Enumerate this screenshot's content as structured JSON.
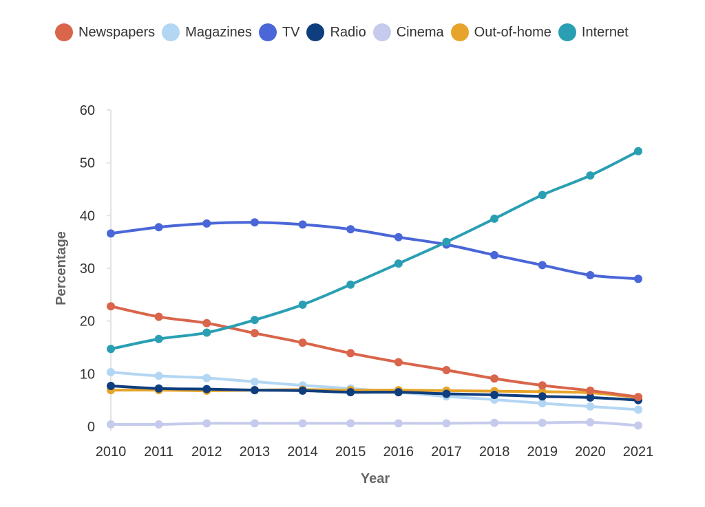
{
  "chart_data": {
    "type": "line",
    "title": "",
    "xlabel": "Year",
    "ylabel": "Percentage",
    "x": [
      2010,
      2011,
      2012,
      2013,
      2014,
      2015,
      2016,
      2017,
      2018,
      2019,
      2020,
      2021
    ],
    "ylim": [
      0,
      60
    ],
    "yticks": [
      0,
      10,
      20,
      30,
      40,
      50,
      60
    ],
    "grid": false,
    "legend_position": "top",
    "series": [
      {
        "name": "Newspapers",
        "color": "#d9654b",
        "values": [
          22.8,
          20.8,
          19.6,
          17.7,
          15.9,
          13.9,
          12.2,
          10.7,
          9.1,
          7.8,
          6.8,
          5.6
        ]
      },
      {
        "name": "Magazines",
        "color": "#b3d6f3",
        "values": [
          10.3,
          9.6,
          9.2,
          8.5,
          7.8,
          7.2,
          6.5,
          5.7,
          5.1,
          4.4,
          3.8,
          3.2
        ]
      },
      {
        "name": "TV",
        "color": "#4a66d8",
        "values": [
          36.6,
          37.8,
          38.5,
          38.7,
          38.3,
          37.4,
          35.9,
          34.5,
          32.5,
          30.6,
          28.7,
          28.0
        ]
      },
      {
        "name": "Radio",
        "color": "#0f3e7e",
        "values": [
          7.7,
          7.2,
          7.1,
          6.9,
          6.8,
          6.5,
          6.5,
          6.2,
          6.0,
          5.7,
          5.5,
          5.0
        ]
      },
      {
        "name": "Cinema",
        "color": "#c6cbed",
        "values": [
          0.4,
          0.4,
          0.6,
          0.6,
          0.6,
          0.6,
          0.6,
          0.6,
          0.7,
          0.7,
          0.8,
          0.2
        ]
      },
      {
        "name": "Out-of-home",
        "color": "#e6a42a",
        "values": [
          6.9,
          6.9,
          6.8,
          6.9,
          7.0,
          6.9,
          6.9,
          6.8,
          6.7,
          6.6,
          6.4,
          5.5
        ]
      },
      {
        "name": "Internet",
        "color": "#2a9fb3",
        "values": [
          14.7,
          16.6,
          17.8,
          20.2,
          23.1,
          26.9,
          30.9,
          35.0,
          39.4,
          43.9,
          47.6,
          52.2
        ]
      }
    ]
  }
}
